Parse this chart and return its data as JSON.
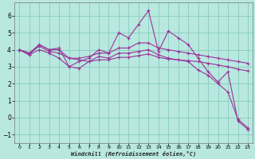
{
  "title": "",
  "xlabel": "Windchill (Refroidissement éolien,°C)",
  "background_color": "#b8e8e0",
  "grid_color": "#88ccbb",
  "line_color": "#993399",
  "xlim_min": -0.5,
  "xlim_max": 23.5,
  "ylim_min": -1.5,
  "ylim_max": 6.8,
  "yticks": [
    -1,
    0,
    1,
    2,
    3,
    4,
    5,
    6
  ],
  "xticks": [
    0,
    1,
    2,
    3,
    4,
    5,
    6,
    7,
    8,
    9,
    10,
    11,
    12,
    13,
    14,
    15,
    16,
    17,
    18,
    19,
    20,
    21,
    22,
    23
  ],
  "series": [
    [
      4.0,
      3.7,
      4.3,
      4.0,
      4.1,
      3.0,
      3.3,
      3.5,
      4.0,
      3.8,
      5.0,
      4.7,
      5.5,
      6.3,
      3.9,
      5.1,
      4.7,
      4.3,
      3.5,
      2.7,
      2.1,
      2.7,
      -0.2,
      -0.7
    ],
    [
      4.0,
      3.8,
      4.3,
      4.0,
      4.0,
      3.5,
      3.5,
      3.6,
      3.8,
      3.8,
      4.1,
      4.1,
      4.4,
      4.4,
      4.1,
      4.0,
      3.9,
      3.8,
      3.7,
      3.6,
      3.5,
      3.4,
      3.3,
      3.2
    ],
    [
      4.0,
      3.8,
      4.2,
      3.9,
      3.8,
      3.5,
      3.4,
      3.3,
      3.4,
      3.4,
      3.55,
      3.55,
      3.65,
      3.75,
      3.55,
      3.45,
      3.4,
      3.35,
      3.3,
      3.2,
      3.1,
      3.0,
      2.85,
      2.75
    ],
    [
      4.0,
      3.7,
      4.0,
      3.8,
      3.5,
      3.0,
      2.9,
      3.3,
      3.6,
      3.5,
      3.8,
      3.8,
      3.9,
      4.0,
      3.7,
      3.5,
      3.4,
      3.3,
      2.8,
      2.5,
      2.0,
      1.5,
      -0.1,
      -0.6
    ]
  ]
}
